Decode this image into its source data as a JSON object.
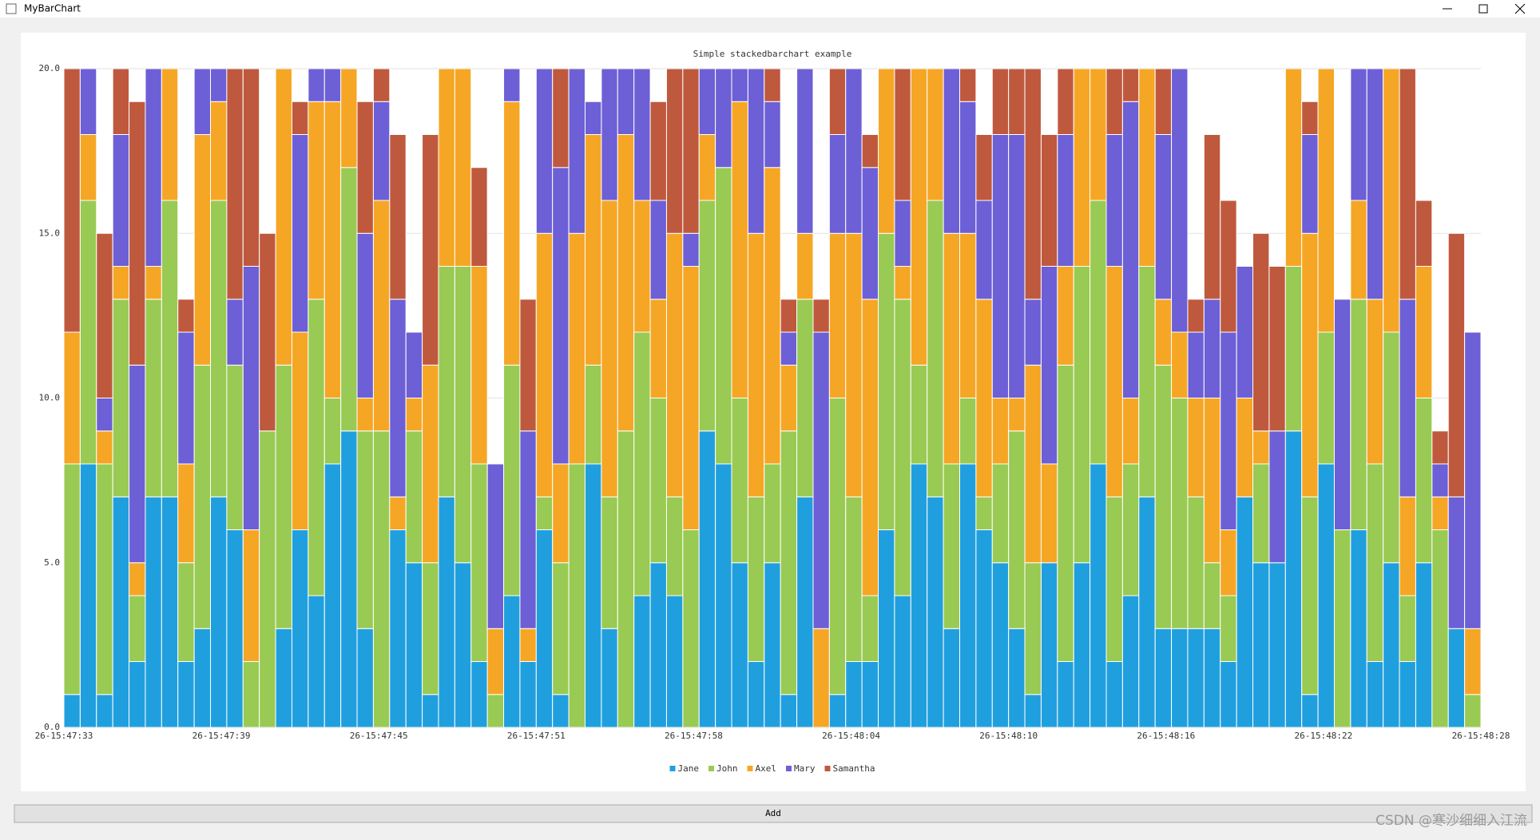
{
  "window": {
    "title": "MyBarChart",
    "button": "Add",
    "watermark": "CSDN @寒沙细细入江流"
  },
  "chart_data": {
    "type": "stacked_bar",
    "title": "Simple stackedbarchart example",
    "x_axis_labels": [
      "26-15:47:33",
      "26-15:47:39",
      "26-15:47:45",
      "26-15:47:51",
      "26-15:47:58",
      "26-15:48:04",
      "26-15:48:10",
      "26-15:48:16",
      "26-15:48:22",
      "26-15:48:28"
    ],
    "ylim": [
      0,
      20
    ],
    "yticks": [
      {
        "value": 0,
        "label": "0.0"
      },
      {
        "value": 5,
        "label": "5.0"
      },
      {
        "value": 10,
        "label": "10.0"
      },
      {
        "value": 15,
        "label": "15.0"
      },
      {
        "value": 20,
        "label": "20.0"
      }
    ],
    "grid": true,
    "legend": "bottom",
    "series": [
      {
        "name": "Jane",
        "color": "#209fdf",
        "values": [
          1,
          8,
          1,
          7,
          2,
          7,
          7,
          2,
          3,
          7,
          6,
          0,
          0,
          3,
          6,
          4,
          8,
          9,
          3,
          0,
          6,
          5,
          1,
          7,
          5,
          2,
          0,
          4,
          2,
          6,
          1,
          0,
          8,
          3,
          0,
          4,
          5,
          4,
          0,
          9,
          8,
          5,
          2,
          5,
          1,
          7,
          0,
          1,
          2,
          2,
          6,
          4,
          8,
          7,
          3,
          8,
          6,
          5,
          3,
          1,
          5,
          2,
          5,
          8,
          2,
          4,
          7,
          3,
          3,
          3,
          3,
          2,
          7,
          5,
          5,
          9,
          1,
          8,
          0,
          6,
          2,
          5,
          2,
          5,
          0,
          3,
          0
        ]
      },
      {
        "name": "John",
        "color": "#99ca53",
        "values": [
          7,
          8,
          7,
          6,
          2,
          6,
          9,
          3,
          8,
          9,
          5,
          2,
          9,
          8,
          0,
          9,
          2,
          8,
          6,
          9,
          0,
          4,
          4,
          7,
          9,
          6,
          1,
          7,
          0,
          1,
          4,
          8,
          3,
          4,
          9,
          8,
          5,
          3,
          6,
          7,
          9,
          5,
          5,
          3,
          8,
          6,
          0,
          9,
          5,
          2,
          9,
          9,
          3,
          9,
          5,
          2,
          1,
          3,
          6,
          4,
          0,
          9,
          9,
          8,
          5,
          4,
          7,
          8,
          7,
          4,
          2,
          2,
          0,
          3,
          0,
          5,
          6,
          4,
          6,
          7,
          6,
          7,
          2,
          5,
          6,
          0,
          1
        ]
      },
      {
        "name": "Axel",
        "color": "#f6a625",
        "values": [
          4,
          2,
          1,
          1,
          1,
          1,
          4,
          3,
          7,
          3,
          0,
          4,
          0,
          9,
          6,
          6,
          9,
          3,
          1,
          7,
          1,
          1,
          6,
          6,
          6,
          6,
          2,
          8,
          1,
          8,
          3,
          7,
          7,
          9,
          9,
          4,
          3,
          8,
          8,
          2,
          0,
          9,
          8,
          9,
          2,
          2,
          3,
          5,
          8,
          9,
          5,
          1,
          9,
          4,
          7,
          5,
          6,
          2,
          1,
          6,
          3,
          3,
          6,
          4,
          7,
          2,
          6,
          2,
          2,
          3,
          5,
          2,
          3,
          1,
          0,
          6,
          8,
          8,
          0,
          3,
          5,
          8,
          3,
          4,
          1,
          0,
          2
        ]
      },
      {
        "name": "Mary",
        "color": "#6d5fd5",
        "values": [
          0,
          2,
          1,
          4,
          6,
          6,
          0,
          4,
          2,
          1,
          2,
          8,
          0,
          0,
          6,
          1,
          1,
          0,
          5,
          3,
          6,
          2,
          0,
          0,
          0,
          0,
          5,
          1,
          6,
          5,
          9,
          5,
          1,
          4,
          2,
          4,
          3,
          0,
          1,
          2,
          3,
          1,
          5,
          2,
          1,
          5,
          9,
          3,
          5,
          4,
          0,
          2,
          0,
          0,
          5,
          4,
          3,
          8,
          8,
          2,
          6,
          4,
          0,
          0,
          4,
          9,
          0,
          5,
          8,
          2,
          3,
          6,
          4,
          0,
          4,
          0,
          3,
          0,
          7,
          4,
          7,
          0,
          6,
          0,
          1,
          4,
          9
        ]
      },
      {
        "name": "Samantha",
        "color": "#bf593e",
        "values": [
          8,
          0,
          5,
          2,
          8,
          0,
          0,
          1,
          0,
          0,
          7,
          6,
          6,
          0,
          1,
          0,
          0,
          0,
          4,
          1,
          5,
          0,
          7,
          0,
          0,
          3,
          0,
          0,
          4,
          0,
          3,
          0,
          0,
          0,
          0,
          0,
          3,
          5,
          5,
          0,
          0,
          0,
          0,
          1,
          1,
          0,
          1,
          2,
          0,
          1,
          0,
          4,
          0,
          0,
          0,
          1,
          2,
          2,
          2,
          7,
          4,
          2,
          0,
          0,
          2,
          1,
          0,
          2,
          0,
          1,
          5,
          4,
          0,
          6,
          5,
          0,
          1,
          0,
          0,
          0,
          0,
          0,
          7,
          2,
          1,
          8,
          0
        ]
      }
    ]
  }
}
